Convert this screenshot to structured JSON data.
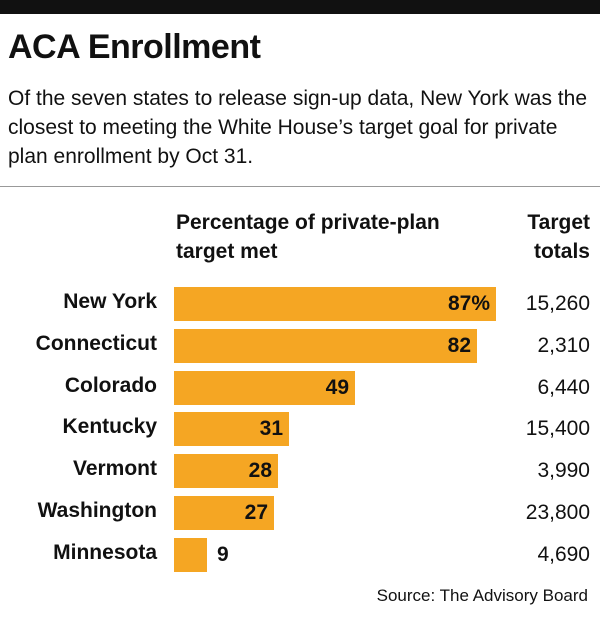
{
  "header": {
    "title": "ACA Enrollment",
    "subtitle": "Of the seven states to release sign-up data, New York was the closest to meeting the White House’s target goal for private plan enrollment by Oct 31."
  },
  "columns": {
    "bar_header": "Percentage of private-plan target met",
    "totals_header": "Target totals"
  },
  "source": "Source: The Advisory Board",
  "colors": {
    "bar": "#f5a623",
    "topbar": "#111111"
  },
  "chart_data": {
    "type": "bar",
    "orientation": "horizontal",
    "categories": [
      "New York",
      "Connecticut",
      "Colorado",
      "Kentucky",
      "Vermont",
      "Washington",
      "Minnesota"
    ],
    "values": [
      87,
      82,
      49,
      31,
      28,
      27,
      9
    ],
    "value_labels": [
      "87%",
      "82",
      "49",
      "31",
      "28",
      "27",
      "9"
    ],
    "target_totals": [
      "15,260",
      "2,310",
      "6,440",
      "15,400",
      "3,990",
      "23,800",
      "4,690"
    ],
    "xlim": [
      0,
      100
    ]
  }
}
